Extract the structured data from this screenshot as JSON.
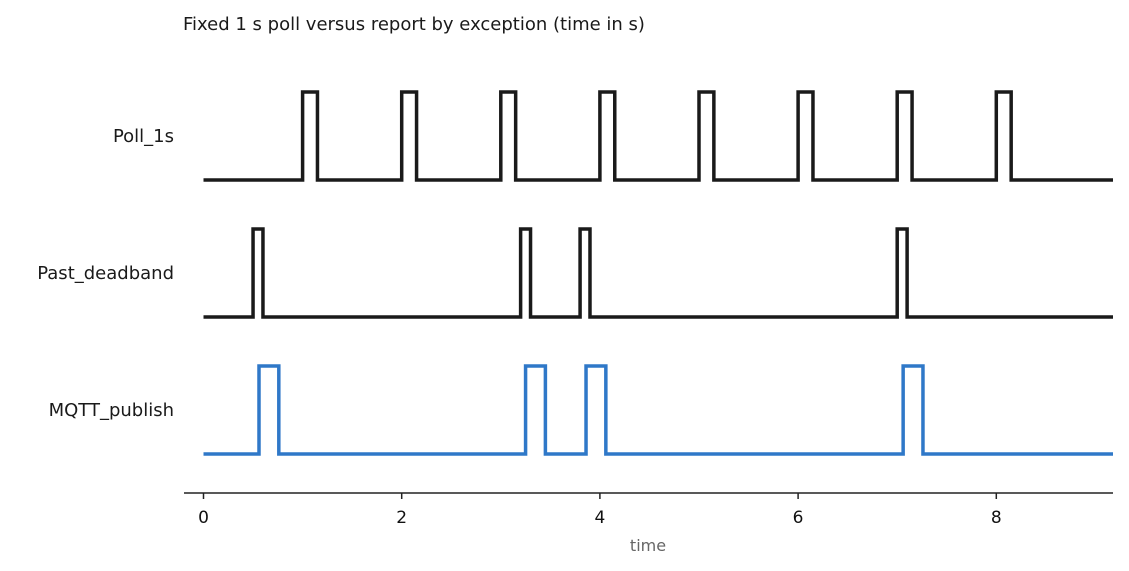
{
  "chart_data": {
    "type": "line",
    "title": "Fixed 1 s poll versus report by exception (time in s)",
    "xlabel": "time",
    "ylabel": "",
    "xlim": [
      -0.2,
      9.15
    ],
    "x_ticks": [
      0,
      2,
      4,
      6,
      8
    ],
    "grid": false,
    "series": [
      {
        "name": "Poll_1s",
        "color": "#1a1a1a",
        "pulses": [
          [
            1.0,
            1.15
          ],
          [
            2.0,
            2.15
          ],
          [
            3.0,
            3.15
          ],
          [
            4.0,
            4.15
          ],
          [
            5.0,
            5.15
          ],
          [
            6.0,
            6.15
          ],
          [
            7.0,
            7.15
          ],
          [
            8.0,
            8.15
          ]
        ]
      },
      {
        "name": "Past_deadband",
        "color": "#1a1a1a",
        "pulses": [
          [
            0.5,
            0.6
          ],
          [
            3.2,
            3.3
          ],
          [
            3.8,
            3.9
          ],
          [
            7.0,
            7.1
          ]
        ]
      },
      {
        "name": "MQTT_publish",
        "color": "#2f78c8",
        "pulses": [
          [
            0.56,
            0.76
          ],
          [
            3.25,
            3.45
          ],
          [
            3.86,
            4.06
          ],
          [
            7.06,
            7.26
          ]
        ]
      }
    ]
  }
}
